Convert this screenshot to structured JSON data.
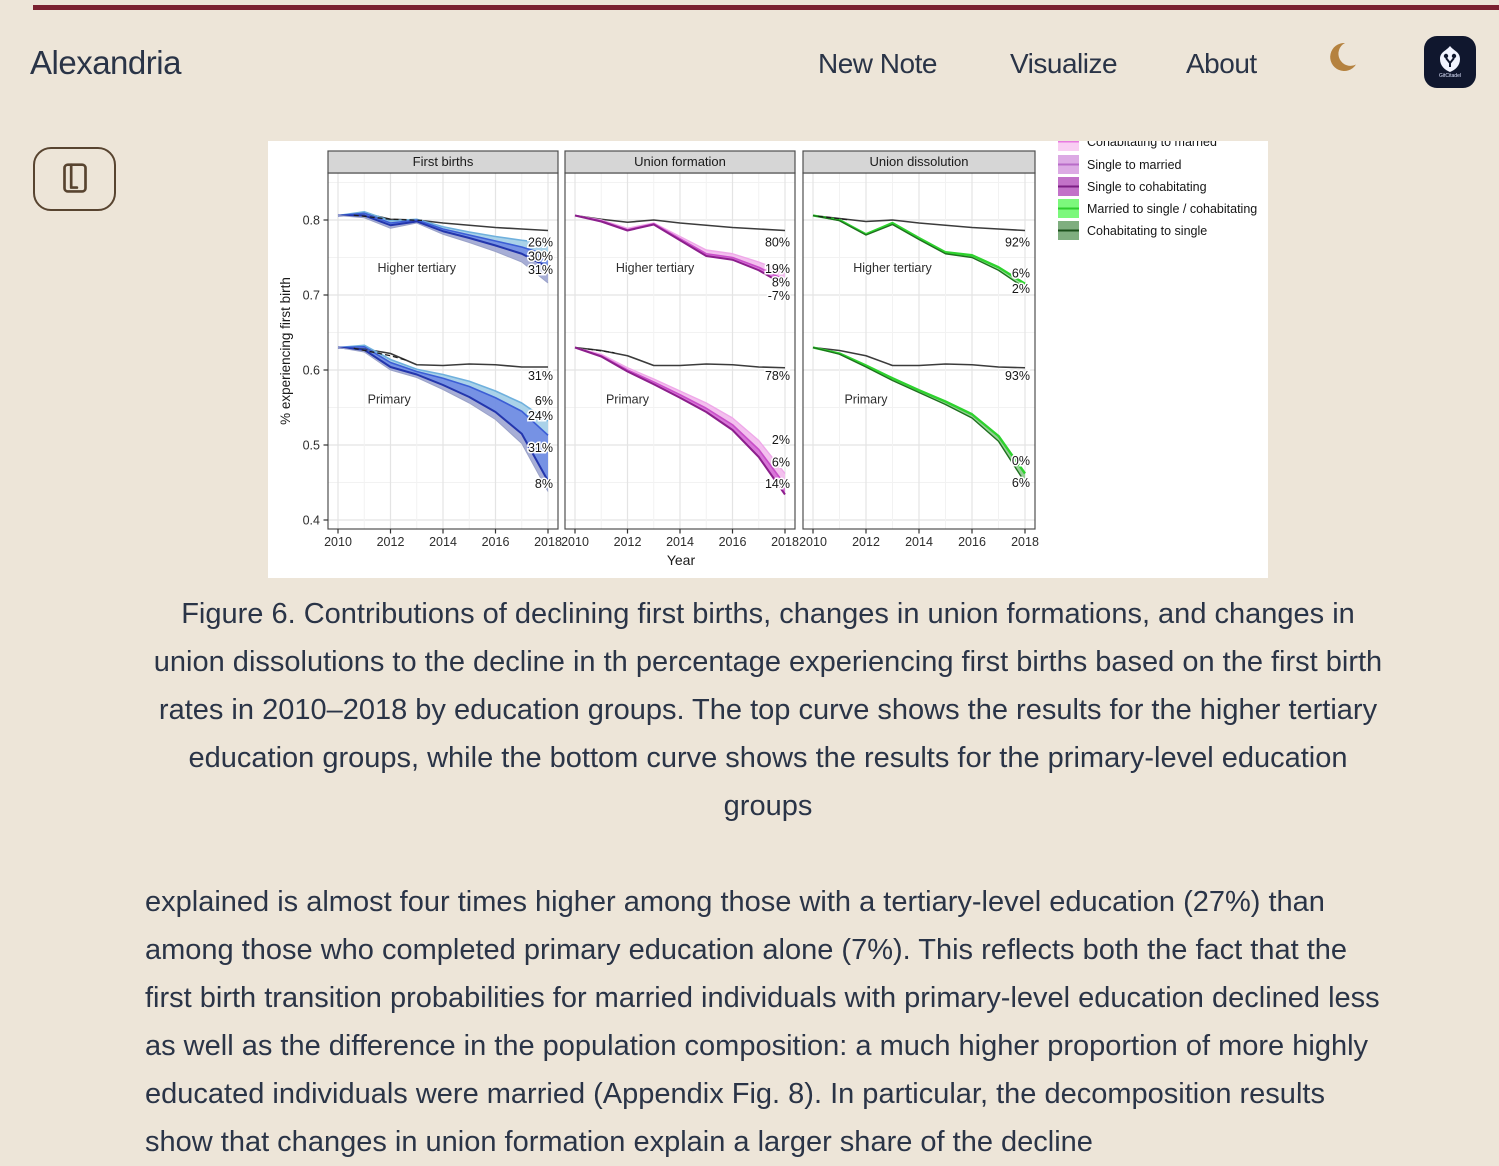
{
  "theme": {
    "background": "#ede5d8",
    "text": "#2a3447",
    "accent_line": "#7b2130",
    "moon": "#b5823f",
    "app_icon_bg": "#10172e",
    "figure_bg": "#ffffff"
  },
  "header": {
    "brand": "Alexandria",
    "links": [
      "New Note",
      "Visualize",
      "About"
    ],
    "app_icon_label": "GitCitadel"
  },
  "caption": "Figure 6. Contributions of declining first births, changes in union formations, and changes in union dissolutions to the decline in th percentage experiencing first births based on the first birth rates in 2010–2018 by education groups. The top curve shows the results for the higher tertiary education groups, while the bottom curve shows the results for the primary-level education groups",
  "body": {
    "paragraph": "explained is almost four times higher among those with a tertiary-level education (27%) than among those who completed primary education alone (7%). This reflects both the fact that the first birth transition probabilities for married individuals with primary-level education declined less as well as the difference in the population composition: a much higher proportion of more highly educated individuals were married (Appendix Fig. 8). In particular, the decomposition results show that changes in union formation explain a larger share of the decline"
  },
  "chart_data": {
    "type": "line",
    "title": "",
    "xlabel": "Year",
    "ylabel": "% experiencing first birth",
    "x": [
      2010,
      2011,
      2012,
      2013,
      2014,
      2015,
      2016,
      2017,
      2018
    ],
    "xticks": [
      2010,
      2012,
      2014,
      2016,
      2018
    ],
    "yticks": [
      0.8,
      0.7,
      0.6,
      0.5,
      0.4
    ],
    "ylim": [
      0.388,
      0.863
    ],
    "grid": true,
    "legend_position": "top-right",
    "legend": [
      {
        "label": "Cohabitating to married",
        "fill": "#f9cef3",
        "line": "#e87ae0",
        "clipped": true
      },
      {
        "label": "Single to married",
        "fill": "#dcaae4",
        "line": "#b86cc8"
      },
      {
        "label": "Single to cohabitating",
        "fill": "#c272c8",
        "line": "#7c1f84"
      },
      {
        "label": "Married to single / cohabitating",
        "fill": "#7cf87c",
        "line": "#2ecc2e"
      },
      {
        "label": "Cohabitating to single",
        "fill": "#7fae7f",
        "line": "#1c511c"
      }
    ],
    "panels": [
      {
        "title": "First births",
        "groups": [
          {
            "label": "Higher tertiary",
            "label_x": 2013.0,
            "label_y": 0.736,
            "ref": [
              0.806,
              0.809,
              0.801,
              0.8,
              0.796,
              0.793,
              0.79,
              0.788,
              0.786
            ],
            "curves": [
              {
                "color": "#6fb0dd",
                "width": 1.6,
                "values": [
                  0.806,
                  0.811,
                  0.799,
                  0.801,
                  0.791,
                  0.784,
                  0.778,
                  0.773,
                  0.769
                ]
              },
              {
                "color": "#3c5ed6",
                "width": 1.6,
                "values": [
                  0.806,
                  0.809,
                  0.796,
                  0.8,
                  0.788,
                  0.78,
                  0.772,
                  0.764,
                  0.753
                ]
              },
              {
                "color": "#2336ad",
                "width": 2.0,
                "values": [
                  0.806,
                  0.806,
                  0.793,
                  0.798,
                  0.785,
                  0.776,
                  0.766,
                  0.755,
                  0.737
                ]
              },
              {
                "color": "#9aa2c8",
                "width": 1.0,
                "values": [
                  0.806,
                  0.803,
                  0.789,
                  0.796,
                  0.781,
                  0.77,
                  0.758,
                  0.744,
                  0.716
                ]
              }
            ],
            "bands": [
              [
                0,
                1,
                "#aad2e9",
                1
              ],
              [
                1,
                2,
                "#6f8ce3",
                0.95
              ],
              [
                2,
                3,
                "#98a0cf",
                0.85
              ]
            ],
            "dashed": [
              [
                2010.6,
                0.8065
              ],
              [
                2012,
                0.801
              ],
              [
                2013.2,
                0.7995
              ]
            ],
            "annotations": [
              {
                "text": "26%",
                "y": 0.77
              },
              {
                "text": "30%",
                "y": 0.7515
              },
              {
                "text": "31%",
                "y": 0.7335
              }
            ]
          },
          {
            "label": "Primary",
            "label_x": 2011.95,
            "label_y": 0.561,
            "ref": [
              0.63,
              0.628,
              0.622,
              0.607,
              0.606,
              0.608,
              0.607,
              0.604,
              0.604
            ],
            "curves": [
              {
                "color": "#6fb0dd",
                "width": 1.6,
                "values": [
                  0.63,
                  0.633,
                  0.614,
                  0.601,
                  0.594,
                  0.585,
                  0.572,
                  0.556,
                  0.532
                ]
              },
              {
                "color": "#3c5ed6",
                "width": 1.6,
                "values": [
                  0.63,
                  0.631,
                  0.61,
                  0.598,
                  0.589,
                  0.578,
                  0.563,
                  0.545,
                  0.513
                ]
              },
              {
                "color": "#2336ad",
                "width": 2.0,
                "values": [
                  0.63,
                  0.627,
                  0.604,
                  0.594,
                  0.58,
                  0.564,
                  0.544,
                  0.515,
                  0.452
                ]
              },
              {
                "color": "#9aa2c8",
                "width": 1.0,
                "values": [
                  0.63,
                  0.624,
                  0.6,
                  0.59,
                  0.574,
                  0.556,
                  0.534,
                  0.502,
                  0.438
                ]
              }
            ],
            "bands": [
              [
                0,
                1,
                "#aad2e9",
                1
              ],
              [
                1,
                2,
                "#6f8ce3",
                0.95
              ],
              [
                2,
                3,
                "#98a0cf",
                0.85
              ]
            ],
            "dashed": [
              [
                2010.6,
                0.629
              ],
              [
                2012,
                0.619
              ],
              [
                2012.6,
                0.613
              ]
            ],
            "annotations": [
              {
                "text": "31%",
                "y": 0.592
              },
              {
                "text": "6%",
                "y": 0.5587
              },
              {
                "text": "24%",
                "y": 0.5387
              },
              {
                "text": "31%",
                "y": 0.496
              },
              {
                "text": "8%",
                "y": 0.448
              }
            ]
          }
        ]
      },
      {
        "title": "Union formation",
        "groups": [
          {
            "label": "Higher tertiary",
            "label_x": 2013.05,
            "label_y": 0.736,
            "ref": [
              0.806,
              0.801,
              0.797,
              0.8,
              0.796,
              0.793,
              0.79,
              0.788,
              0.786
            ],
            "curves": [
              {
                "color": "#efa8e9",
                "width": 1.4,
                "values": [
                  0.806,
                  0.8,
                  0.789,
                  0.796,
                  0.778,
                  0.76,
                  0.755,
                  0.744,
                  0.73
                ]
              },
              {
                "color": "#c94fc9",
                "width": 1.6,
                "values": [
                  0.806,
                  0.799,
                  0.787,
                  0.795,
                  0.775,
                  0.755,
                  0.75,
                  0.737,
                  0.72
                ]
              },
              {
                "color": "#8c1f8c",
                "width": 2.0,
                "values": [
                  0.806,
                  0.798,
                  0.786,
                  0.794,
                  0.773,
                  0.752,
                  0.747,
                  0.733,
                  0.713
                ]
              }
            ],
            "bands": [
              [
                0,
                1,
                "#f3c0ee",
                1
              ],
              [
                1,
                2,
                "#d66fd6",
                0.95
              ]
            ],
            "dashed": [],
            "annotations": [
              {
                "text": "80%",
                "y": 0.77
              },
              {
                "text": "19%",
                "y": 0.7347
              },
              {
                "text": "8%",
                "y": 0.717
              },
              {
                "text": "-7%",
                "y": 0.699
              }
            ]
          },
          {
            "label": "Primary",
            "label_x": 2012.0,
            "label_y": 0.561,
            "ref": [
              0.63,
              0.626,
              0.619,
              0.606,
              0.606,
              0.608,
              0.607,
              0.604,
              0.603
            ],
            "curves": [
              {
                "color": "#efa8e9",
                "width": 1.4,
                "values": [
                  0.63,
                  0.621,
                  0.603,
                  0.588,
                  0.572,
                  0.556,
                  0.536,
                  0.506,
                  0.462
                ]
              },
              {
                "color": "#c94fc9",
                "width": 1.6,
                "values": [
                  0.63,
                  0.619,
                  0.6,
                  0.584,
                  0.567,
                  0.549,
                  0.527,
                  0.494,
                  0.447
                ]
              },
              {
                "color": "#8c1f8c",
                "width": 2.0,
                "values": [
                  0.63,
                  0.618,
                  0.598,
                  0.581,
                  0.563,
                  0.544,
                  0.52,
                  0.484,
                  0.434
                ]
              }
            ],
            "bands": [
              [
                0,
                1,
                "#f3c0ee",
                1
              ],
              [
                1,
                2,
                "#d66fd6",
                0.95
              ]
            ],
            "dashed": [
              [
                2010.5,
                0.628
              ],
              [
                2011.5,
                0.623
              ]
            ],
            "annotations": [
              {
                "text": "78%",
                "y": 0.592
              },
              {
                "text": "2%",
                "y": 0.5067
              },
              {
                "text": "6%",
                "y": 0.477
              },
              {
                "text": "14%",
                "y": 0.448
              }
            ]
          }
        ]
      },
      {
        "title": "Union dissolution",
        "groups": [
          {
            "label": "Higher tertiary",
            "label_x": 2013.0,
            "label_y": 0.736,
            "ref": [
              0.806,
              0.802,
              0.798,
              0.8,
              0.796,
              0.793,
              0.79,
              0.788,
              0.786
            ],
            "curves": [
              {
                "color": "#2ed32e",
                "width": 2.4,
                "values": [
                  0.806,
                  0.8,
                  0.781,
                  0.796,
                  0.776,
                  0.757,
                  0.753,
                  0.737,
                  0.715
                ]
              },
              {
                "color": "#1d701d",
                "width": 1.4,
                "values": [
                  0.806,
                  0.799,
                  0.78,
                  0.794,
                  0.774,
                  0.755,
                  0.75,
                  0.733,
                  0.709
                ]
              }
            ],
            "bands": [
              [
                0,
                1,
                "#8edc8e",
                0.9
              ]
            ],
            "dashed": [
              [
                2010.2,
                0.805
              ],
              [
                2011.4,
                0.8
              ]
            ],
            "annotations": [
              {
                "text": "92%",
                "y": 0.77
              },
              {
                "text": "6%",
                "y": 0.729
              },
              {
                "text": "2%",
                "y": 0.708
              }
            ]
          },
          {
            "label": "Primary",
            "label_x": 2012.0,
            "label_y": 0.561,
            "ref": [
              0.63,
              0.626,
              0.619,
              0.606,
              0.606,
              0.608,
              0.607,
              0.604,
              0.603
            ],
            "curves": [
              {
                "color": "#2ed32e",
                "width": 2.4,
                "values": [
                  0.63,
                  0.622,
                  0.606,
                  0.589,
                  0.573,
                  0.558,
                  0.541,
                  0.512,
                  0.462
                ]
              },
              {
                "color": "#1d701d",
                "width": 1.4,
                "values": [
                  0.63,
                  0.621,
                  0.604,
                  0.586,
                  0.57,
                  0.554,
                  0.536,
                  0.505,
                  0.45
                ]
              }
            ],
            "bands": [
              [
                0,
                1,
                "#8cc98c",
                0.9
              ]
            ],
            "dashed": [],
            "annotations": [
              {
                "text": "93%",
                "y": 0.592
              },
              {
                "text": "0%",
                "y": 0.4787
              },
              {
                "text": "6%",
                "y": 0.4493
              }
            ]
          }
        ]
      }
    ]
  }
}
